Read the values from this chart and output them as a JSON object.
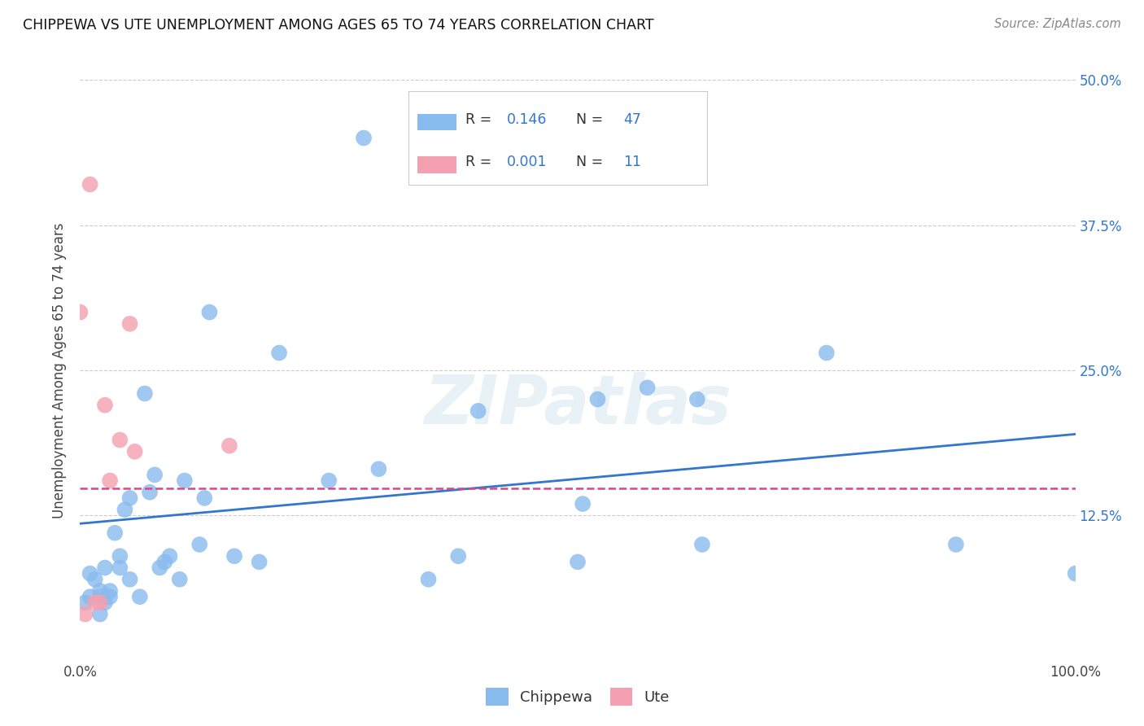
{
  "title": "CHIPPEWA VS UTE UNEMPLOYMENT AMONG AGES 65 TO 74 YEARS CORRELATION CHART",
  "source": "Source: ZipAtlas.com",
  "ylabel": "Unemployment Among Ages 65 to 74 years",
  "xlim": [
    0,
    1.0
  ],
  "ylim": [
    0,
    0.5
  ],
  "ytick_labels": [
    "12.5%",
    "25.0%",
    "37.5%",
    "50.0%"
  ],
  "ytick_positions": [
    0.125,
    0.25,
    0.375,
    0.5
  ],
  "chippewa_color": "#88bbee",
  "ute_color": "#f4a0b0",
  "trend_chippewa_color": "#3377cc",
  "trend_ute_color": "#dd4488",
  "R_chippewa": "0.146",
  "N_chippewa": "47",
  "R_ute": "0.001",
  "N_ute": "11",
  "background_color": "#ffffff",
  "grid_color": "#cccccc",
  "watermark_text": "ZIPatlas",
  "chippewa_x": [
    0.005,
    0.01,
    0.01,
    0.015,
    0.02,
    0.02,
    0.02,
    0.025,
    0.025,
    0.03,
    0.03,
    0.035,
    0.04,
    0.04,
    0.045,
    0.05,
    0.05,
    0.06,
    0.065,
    0.07,
    0.075,
    0.08,
    0.085,
    0.09,
    0.1,
    0.105,
    0.12,
    0.125,
    0.13,
    0.155,
    0.18,
    0.2,
    0.25,
    0.285,
    0.3,
    0.35,
    0.38,
    0.4,
    0.5,
    0.505,
    0.52,
    0.57,
    0.62,
    0.625,
    0.75,
    0.88,
    1.0
  ],
  "chippewa_y": [
    0.05,
    0.055,
    0.075,
    0.07,
    0.04,
    0.055,
    0.06,
    0.05,
    0.08,
    0.055,
    0.06,
    0.11,
    0.08,
    0.09,
    0.13,
    0.14,
    0.07,
    0.055,
    0.23,
    0.145,
    0.16,
    0.08,
    0.085,
    0.09,
    0.07,
    0.155,
    0.1,
    0.14,
    0.3,
    0.09,
    0.085,
    0.265,
    0.155,
    0.45,
    0.165,
    0.07,
    0.09,
    0.215,
    0.085,
    0.135,
    0.225,
    0.235,
    0.225,
    0.1,
    0.265,
    0.1,
    0.075
  ],
  "ute_x": [
    0.0,
    0.005,
    0.01,
    0.015,
    0.02,
    0.025,
    0.03,
    0.04,
    0.05,
    0.055,
    0.15
  ],
  "ute_y": [
    0.3,
    0.04,
    0.41,
    0.05,
    0.05,
    0.22,
    0.155,
    0.19,
    0.29,
    0.18,
    0.185
  ],
  "trend_chip_x0": 0.0,
  "trend_chip_x1": 1.0,
  "trend_chip_y0": 0.118,
  "trend_chip_y1": 0.195,
  "trend_ute_y": 0.148
}
